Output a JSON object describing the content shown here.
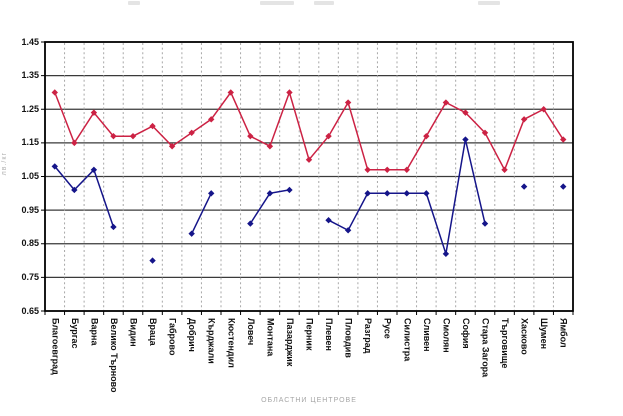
{
  "figure": {
    "title_visible": false,
    "background": "#ffffff"
  },
  "chart_data": {
    "type": "line",
    "xlabel": "ОБЛАСТНИ ЦЕНТРОВЕ",
    "ylabel": "лв./кг",
    "ylim": [
      0.65,
      1.45
    ],
    "ytick_step": 0.1,
    "ytick_labels": [
      "1.45",
      "1.35",
      "1.25",
      "1.15",
      "1.05",
      "0.95",
      "0.85",
      "0.75",
      "0.65"
    ],
    "grid": {
      "horizontal": "solid",
      "vertical": "dashed"
    },
    "legend_position": "none",
    "categories": [
      "Благоевград",
      "Бургас",
      "Варна",
      "Велико Търново",
      "Видин",
      "Враца",
      "Габрово",
      "Добрич",
      "Кърджали",
      "Кюстендил",
      "Ловеч",
      "Монтана",
      "Пазарджик",
      "Перник",
      "Плевен",
      "Пловдив",
      "Разград",
      "Русе",
      "Силистра",
      "Сливен",
      "Смолян",
      "София",
      "Стара Загора",
      "Търговище",
      "Хасково",
      "Шумен",
      "Ямбол"
    ],
    "series": [
      {
        "name": "red-series",
        "color": "#cc2244",
        "marker": "diamond",
        "values": [
          1.3,
          1.15,
          1.24,
          1.17,
          1.17,
          1.2,
          1.14,
          1.18,
          1.22,
          1.3,
          1.17,
          1.14,
          1.3,
          1.1,
          1.17,
          1.27,
          1.07,
          1.07,
          1.07,
          1.17,
          1.27,
          1.24,
          1.18,
          1.07,
          1.22,
          1.25,
          1.16
        ]
      },
      {
        "name": "blue-series",
        "color": "#15158a",
        "marker": "diamond",
        "values": [
          1.08,
          1.01,
          1.07,
          0.9,
          null,
          0.8,
          null,
          0.88,
          1.0,
          null,
          0.91,
          1.0,
          1.01,
          null,
          0.92,
          0.89,
          1.0,
          1.0,
          1.0,
          1.0,
          0.82,
          1.16,
          0.91,
          null,
          1.02,
          null,
          1.02
        ]
      }
    ]
  }
}
